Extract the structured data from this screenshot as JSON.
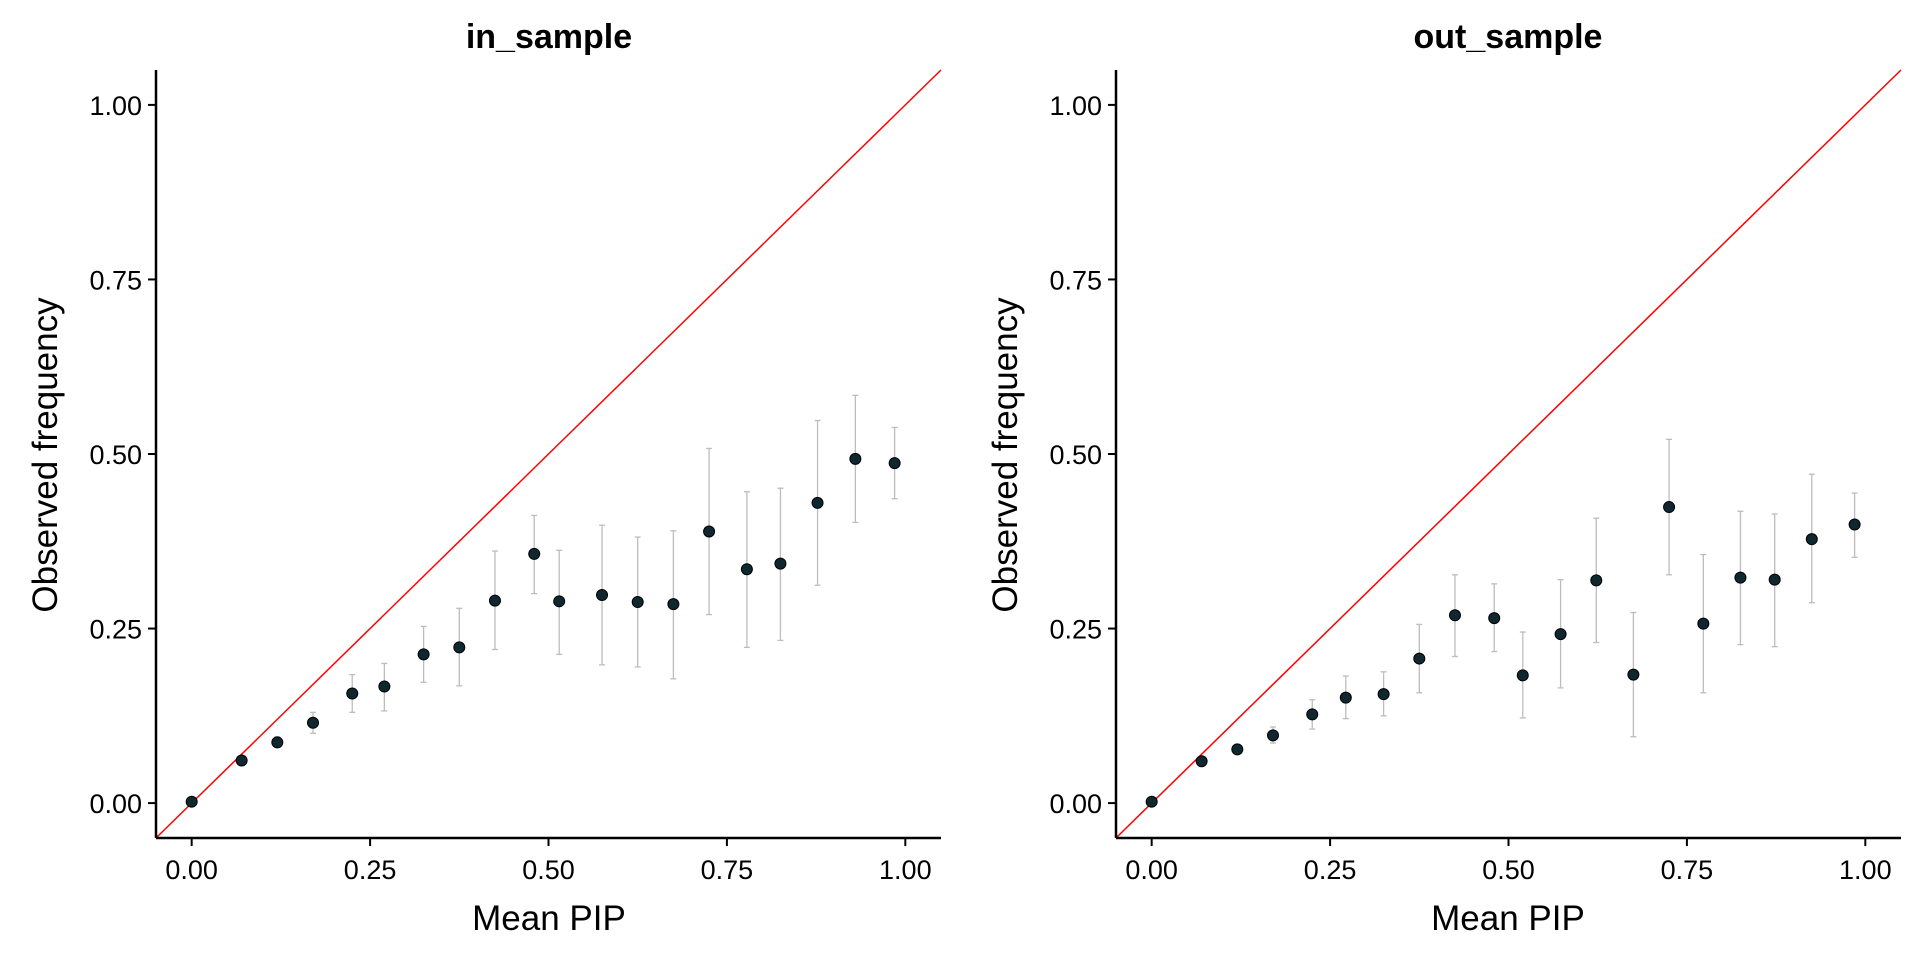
{
  "colors": {
    "point": "#0f2830",
    "error_bar": "#bdbdbd",
    "reference_line": "#ff0000",
    "axis": "#000000"
  },
  "chart_data": [
    {
      "type": "scatter",
      "title": "in_sample",
      "xlabel": "Mean PIP",
      "ylabel": "Observed frequency",
      "xlim": [
        -0.05,
        1.05
      ],
      "ylim": [
        -0.05,
        1.05
      ],
      "xticks": [
        "0.00",
        "0.25",
        "0.50",
        "0.75",
        "1.00"
      ],
      "yticks": [
        "0.00",
        "0.25",
        "0.50",
        "0.75",
        "1.00"
      ],
      "reference_line": "y = x",
      "grid": false,
      "legend": "none",
      "x": [
        0.0,
        0.07,
        0.12,
        0.17,
        0.225,
        0.27,
        0.325,
        0.375,
        0.425,
        0.48,
        0.515,
        0.575,
        0.625,
        0.675,
        0.725,
        0.778,
        0.825,
        0.877,
        0.93,
        0.985
      ],
      "y": [
        0.002,
        0.061,
        0.087,
        0.115,
        0.157,
        0.167,
        0.213,
        0.223,
        0.29,
        0.357,
        0.289,
        0.298,
        0.288,
        0.285,
        0.389,
        0.335,
        0.343,
        0.43,
        0.493,
        0.487
      ],
      "y_low": [
        0.0,
        0.056,
        0.08,
        0.1,
        0.13,
        0.132,
        0.173,
        0.168,
        0.22,
        0.3,
        0.213,
        0.198,
        0.195,
        0.178,
        0.27,
        0.223,
        0.233,
        0.312,
        0.402,
        0.436
      ],
      "y_high": [
        0.004,
        0.066,
        0.095,
        0.13,
        0.184,
        0.2,
        0.253,
        0.279,
        0.361,
        0.412,
        0.362,
        0.398,
        0.381,
        0.39,
        0.508,
        0.446,
        0.451,
        0.548,
        0.584,
        0.538
      ]
    },
    {
      "type": "scatter",
      "title": "out_sample",
      "xlabel": "Mean PIP",
      "ylabel": "Observed frequency",
      "xlim": [
        -0.05,
        1.05
      ],
      "ylim": [
        -0.05,
        1.05
      ],
      "xticks": [
        "0.00",
        "0.25",
        "0.50",
        "0.75",
        "1.00"
      ],
      "yticks": [
        "0.00",
        "0.25",
        "0.50",
        "0.75",
        "1.00"
      ],
      "reference_line": "y = x",
      "grid": false,
      "legend": "none",
      "x": [
        0.0,
        0.07,
        0.12,
        0.17,
        0.225,
        0.272,
        0.325,
        0.375,
        0.425,
        0.48,
        0.52,
        0.573,
        0.623,
        0.675,
        0.725,
        0.773,
        0.825,
        0.873,
        0.925,
        0.985
      ],
      "y": [
        0.002,
        0.06,
        0.077,
        0.097,
        0.127,
        0.151,
        0.156,
        0.207,
        0.269,
        0.265,
        0.183,
        0.242,
        0.319,
        0.184,
        0.424,
        0.257,
        0.323,
        0.32,
        0.378,
        0.399
      ],
      "y_low": [
        0.0,
        0.054,
        0.071,
        0.086,
        0.106,
        0.121,
        0.125,
        0.158,
        0.21,
        0.217,
        0.122,
        0.165,
        0.23,
        0.095,
        0.327,
        0.158,
        0.227,
        0.224,
        0.287,
        0.352
      ],
      "y_high": [
        0.004,
        0.066,
        0.084,
        0.109,
        0.148,
        0.182,
        0.188,
        0.256,
        0.327,
        0.314,
        0.245,
        0.32,
        0.408,
        0.273,
        0.521,
        0.356,
        0.418,
        0.414,
        0.471,
        0.444
      ]
    }
  ]
}
